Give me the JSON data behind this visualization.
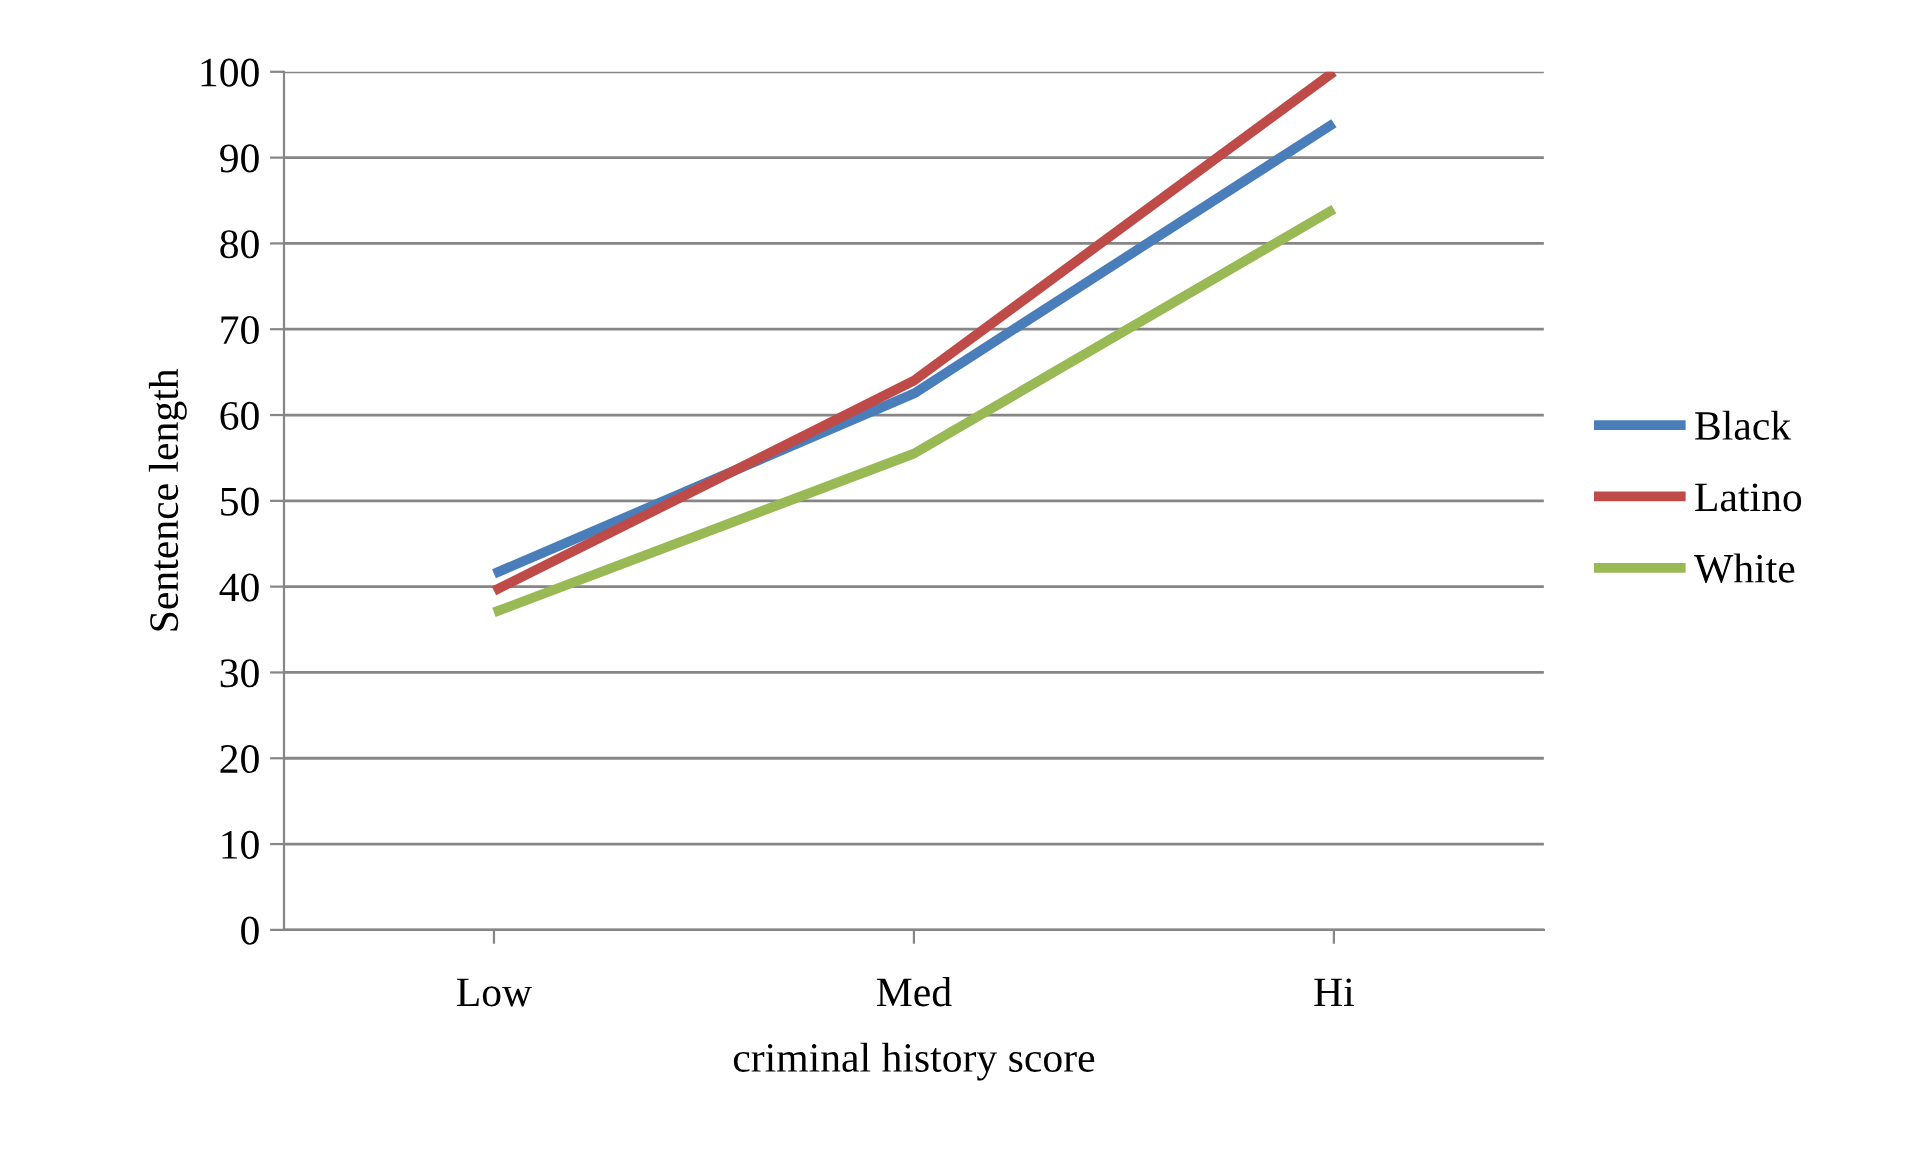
{
  "chart_data": {
    "type": "line",
    "xlabel": "criminal history score",
    "ylabel": "Sentence length",
    "categories": [
      "Low",
      "Med",
      "Hi"
    ],
    "series": [
      {
        "name": "Black",
        "color": "#4a7ebb",
        "values": [
          41.5,
          62.5,
          94
        ]
      },
      {
        "name": "Latino",
        "color": "#be4b48",
        "values": [
          39.5,
          64,
          100
        ]
      },
      {
        "name": "White",
        "color": "#98b954",
        "values": [
          37,
          55.5,
          84
        ]
      }
    ],
    "ylim": [
      0,
      100
    ],
    "yticks": [
      0,
      10,
      20,
      30,
      40,
      50,
      60,
      70,
      80,
      90,
      100
    ],
    "grid": "y",
    "legend": "right",
    "marker": "none"
  }
}
